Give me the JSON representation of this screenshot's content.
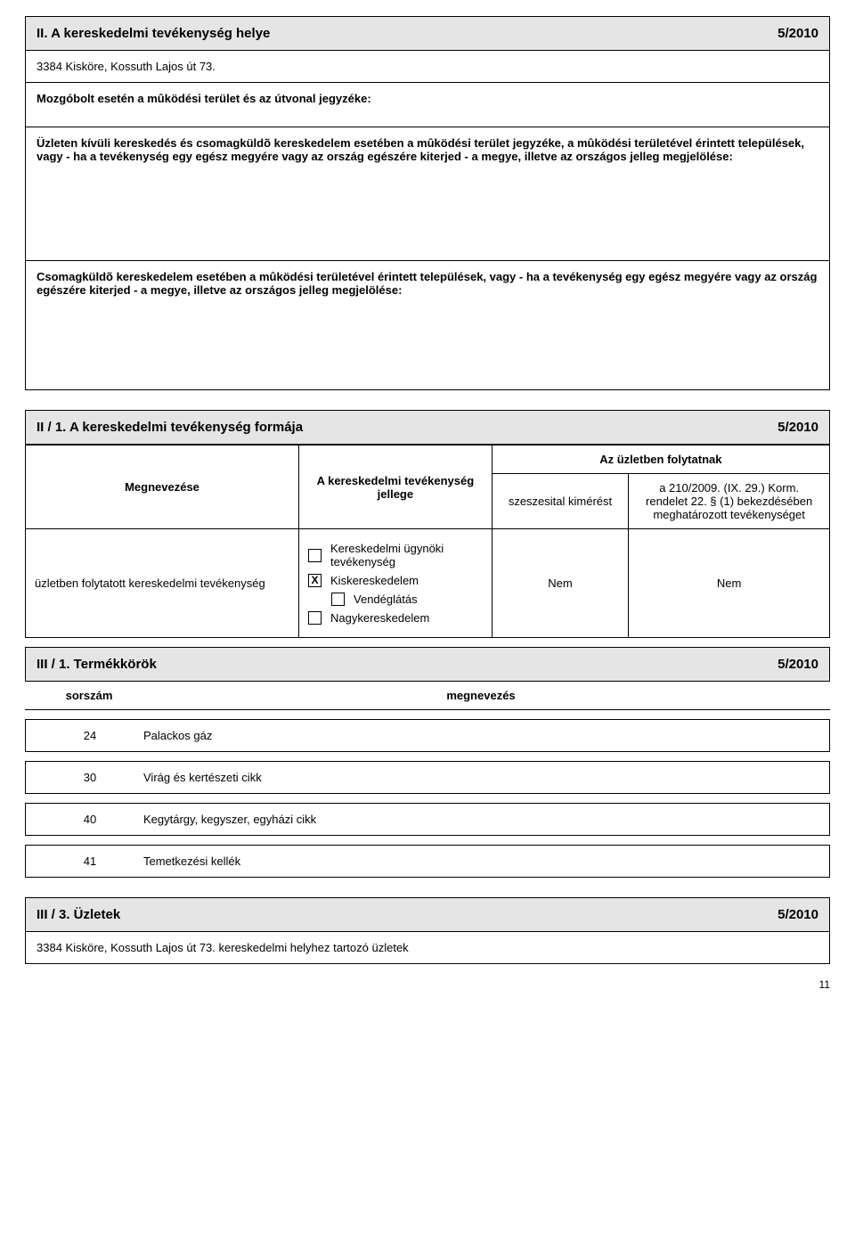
{
  "sectionII": {
    "title": "II. A kereskedelmi tevékenység helye",
    "ref": "5/2010",
    "address": "3384 Kisköre, Kossuth Lajos út 73.",
    "mozgobolt_label": "Mozgóbolt esetén a mûködési terület és az útvonal jegyzéke:",
    "uzleten_text": "Üzleten kívüli kereskedés és csomagküldõ kereskedelem esetében a mûködési terület jegyzéke, a mûködési területével érintett települések, vagy - ha a tevékenység egy egész megyére vagy az ország egészére kiterjed - a megye, illetve az országos jelleg megjelölése:",
    "csomag_text": "Csomagküldõ kereskedelem esetében a mûködési területével érintett települések, vagy - ha a tevékenység egy egész megyére vagy az ország egészére kiterjed - a megye, illetve az országos jelleg megjelölése:"
  },
  "sectionII1": {
    "title": "II / 1.  A kereskedelmi tevékenység formája",
    "ref": "5/2010",
    "col_megnevezes": "Megnevezése",
    "col_jelleg": "A kereskedelmi tevékenység jellege",
    "col_az_uzletben": "Az üzletben folytatnak",
    "col_szeszesital": "szeszesital kimérést",
    "col_rendelet": "a 210/2009. (IX. 29.) Korm. rendelet 22. § (1) bekezdésében meghatározott tevékenységet",
    "row_label": "üzletben folytatott kereskedelmi tevékenység",
    "opt_ugynoki": "Kereskedelmi  ügynöki tevékenység",
    "opt_kisker": "Kiskereskedelem",
    "opt_vendeg": "Vendéglátás",
    "opt_nagyker": "Nagykereskedelem",
    "val_szeszesital": "Nem",
    "val_rendelet": "Nem"
  },
  "sectionIII1": {
    "title": "III / 1. Termékkörök",
    "ref": "5/2010",
    "col_sorszam": "sorszám",
    "col_megnevezes": "megnevezés",
    "rows": [
      {
        "n": "24",
        "name": "Palackos gáz"
      },
      {
        "n": "30",
        "name": "Virág és kertészeti cikk"
      },
      {
        "n": "40",
        "name": "Kegytárgy, kegyszer, egyházi cikk"
      },
      {
        "n": "41",
        "name": "Temetkezési kellék"
      }
    ]
  },
  "sectionIII3": {
    "title": "III / 3. Üzletek",
    "ref": "5/2010",
    "text": "3384 Kisköre, Kossuth Lajos út 73. kereskedelmi helyhez tartozó üzletek"
  },
  "page_number": "11"
}
